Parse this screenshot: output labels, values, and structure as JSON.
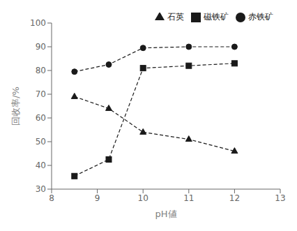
{
  "chart_data": {
    "type": "line",
    "xlabel": "pH値",
    "ylabel": "回收率/%",
    "x": [
      8.5,
      9.25,
      10.0,
      11.0,
      12.0
    ],
    "series": [
      {
        "name": "磁铁矿",
        "color": "#1a1a1a",
        "marker": "square",
        "line_style": "dashed",
        "values": [
          35.5,
          42.5,
          81.0,
          82.0,
          83.0
        ]
      },
      {
        "name": "赤铁矿",
        "color": "#1a1a1a",
        "marker": "circle",
        "line_style": "dashed",
        "values": [
          79.5,
          82.5,
          89.5,
          90.0,
          90.0
        ]
      },
      {
        "name": "石英",
        "color": "#1a1a1a",
        "marker": "triangle",
        "line_style": "dashed",
        "values": [
          69.0,
          64.0,
          54.0,
          51.0,
          46.0
        ]
      }
    ],
    "xlim": [
      8,
      13
    ],
    "ylim": [
      30,
      100
    ],
    "xticks": [
      8,
      9,
      10,
      11,
      12,
      13
    ],
    "yticks": [
      30,
      40,
      50,
      60,
      70,
      80,
      90,
      100
    ],
    "grid": false,
    "legend": "upper right"
  }
}
